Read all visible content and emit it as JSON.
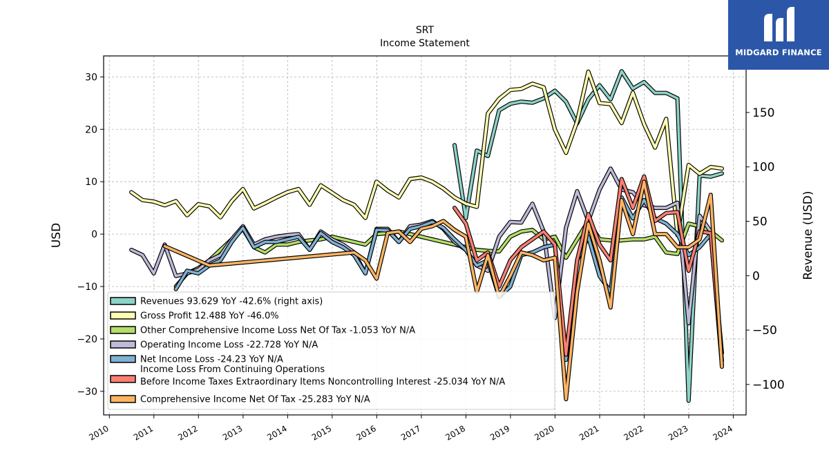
{
  "brand": {
    "name": "MIDGARD FINANCE",
    "bg_color": "#2c57a8"
  },
  "chart_data": {
    "type": "line",
    "title": "SRT",
    "subtitle": "Income Statement",
    "ylabel": "USD",
    "y2label": "Revenue (USD)",
    "ylim": [
      -34.5,
      34
    ],
    "y2lim": [
      -128,
      202
    ],
    "xlim": [
      "2009-11-15",
      "2024-04-15"
    ],
    "yticks": [
      30,
      20,
      10,
      0,
      -10,
      -20,
      -30
    ],
    "y2ticks": [
      150,
      100,
      50,
      0,
      -50,
      -100
    ],
    "xticks": [
      "2010",
      "2011",
      "2012",
      "2013",
      "2014",
      "2015",
      "2016",
      "2017",
      "2018",
      "2019",
      "2020",
      "2021",
      "2022",
      "2023",
      "2024"
    ],
    "grid": true,
    "legend_position": "lower-left",
    "series": [
      {
        "name": "Revenues",
        "legend": "Revenues  93.629 YoY -42.6% (right axis)",
        "axis": "right",
        "color": "#8dd3c7",
        "x": [
          "2017-09-30",
          "2017-12-31",
          "2018-03-31",
          "2018-06-30",
          "2018-09-30",
          "2018-12-31",
          "2019-03-31",
          "2019-06-30",
          "2019-09-30",
          "2019-12-31",
          "2020-03-31",
          "2020-06-30",
          "2020-09-30",
          "2020-12-31",
          "2021-03-31",
          "2021-06-30",
          "2021-09-30",
          "2021-12-31",
          "2022-03-31",
          "2022-06-30",
          "2022-09-30",
          "2022-12-31",
          "2023-03-31",
          "2023-06-30",
          "2023-09-30"
        ],
        "y": [
          120,
          53,
          115,
          110,
          152,
          158,
          160,
          159,
          163,
          170,
          160,
          140,
          162,
          175,
          162,
          188,
          172,
          178,
          168,
          168,
          163,
          -115,
          92,
          91,
          94
        ]
      },
      {
        "name": "Gross Profit",
        "legend": "Gross Profit  12.488 YoY -46.0%",
        "axis": "left",
        "color": "#ffffb3",
        "x": [
          "2010-06-30",
          "2010-09-30",
          "2010-12-31",
          "2011-03-31",
          "2011-06-30",
          "2011-09-30",
          "2011-12-31",
          "2012-03-31",
          "2012-06-30",
          "2012-09-30",
          "2012-12-31",
          "2013-03-31",
          "2013-06-30",
          "2013-09-30",
          "2013-12-31",
          "2014-03-31",
          "2014-06-30",
          "2014-09-30",
          "2014-12-31",
          "2015-03-31",
          "2015-06-30",
          "2015-09-30",
          "2015-12-31",
          "2016-03-31",
          "2016-06-30",
          "2016-09-30",
          "2016-12-31",
          "2017-03-31",
          "2017-06-30",
          "2017-09-30",
          "2017-12-31",
          "2018-03-31",
          "2018-06-30",
          "2018-09-30",
          "2018-12-31",
          "2019-03-31",
          "2019-06-30",
          "2019-09-30",
          "2019-12-31",
          "2020-03-31",
          "2020-06-30",
          "2020-09-30",
          "2020-12-31",
          "2021-03-31",
          "2021-06-30",
          "2021-09-30",
          "2021-12-31",
          "2022-03-31",
          "2022-06-30",
          "2022-09-30",
          "2022-12-31",
          "2023-03-31",
          "2023-06-30",
          "2023-09-30"
        ],
        "y": [
          8,
          6.5,
          6.2,
          5.5,
          6.3,
          3.6,
          5.7,
          5.3,
          3.2,
          6.3,
          8.6,
          4.9,
          5.9,
          7,
          8,
          8.6,
          5.6,
          9.3,
          7.9,
          6.5,
          5.6,
          3.1,
          10,
          8.3,
          7,
          10.5,
          10.8,
          10,
          8.7,
          7,
          5.8,
          5.2,
          23,
          25.8,
          27.5,
          27.7,
          28.7,
          28,
          20,
          15.5,
          21.5,
          31,
          25,
          24.8,
          21.2,
          27,
          21,
          16.5,
          22,
          -0.2,
          13.2,
          11.5,
          12.8,
          12.5
        ]
      },
      {
        "name": "Other Comprehensive Income Loss Net Of Tax",
        "legend": "Other Comprehensive Income Loss Net Of Tax  -1.053 YoY N/A",
        "axis": "left",
        "color": "#b3de69",
        "x": [
          "2011-06-30",
          "2011-09-30",
          "2011-12-31",
          "2012-03-31",
          "2012-06-30",
          "2012-09-30",
          "2012-12-31",
          "2013-03-31",
          "2013-06-30",
          "2013-09-30",
          "2013-12-31",
          "2014-03-31",
          "2014-06-30",
          "2014-09-30",
          "2014-12-31",
          "2015-03-31",
          "2015-06-30",
          "2015-09-30",
          "2015-12-31",
          "2016-03-31",
          "2016-06-30",
          "2016-09-30",
          "2016-12-31",
          "2017-03-31",
          "2017-06-30",
          "2017-09-30",
          "2017-12-31",
          "2018-03-31",
          "2018-06-30",
          "2018-09-30",
          "2018-12-31",
          "2019-03-31",
          "2019-06-30",
          "2019-09-30",
          "2019-12-31",
          "2020-03-31",
          "2020-06-30",
          "2020-09-30",
          "2020-12-31",
          "2021-03-31",
          "2021-06-30",
          "2021-09-30",
          "2021-12-31",
          "2022-03-31",
          "2022-06-30",
          "2022-09-30",
          "2022-12-31",
          "2023-03-31",
          "2023-06-30",
          "2023-09-30"
        ],
        "y": [
          -10,
          -7.5,
          -6.5,
          -5,
          -3,
          -1,
          1,
          -2.5,
          -3.5,
          -2,
          -2,
          -1.5,
          -1.2,
          -1,
          -0.5,
          -1,
          -1.5,
          -2,
          0,
          0.2,
          0.5,
          0,
          -0.5,
          -1,
          -1.5,
          -2,
          -2.5,
          -3,
          -3.2,
          -3.3,
          -0.5,
          0.5,
          0.8,
          -1,
          -0.5,
          -4.5,
          -1,
          2.5,
          -1,
          -1.2,
          -1.2,
          -1,
          -1,
          -0.5,
          -3.5,
          -3.8,
          2,
          1.5,
          0.5,
          -1.2
        ]
      },
      {
        "name": "Operating Income Loss",
        "legend": "Operating Income Loss  -22.728 YoY N/A",
        "axis": "left",
        "color": "#bebada",
        "x": [
          "2010-06-30",
          "2010-09-30",
          "2010-12-31",
          "2011-03-31",
          "2011-06-30",
          "2011-09-30",
          "2011-12-31",
          "2012-03-31",
          "2012-06-30",
          "2012-09-30",
          "2012-12-31",
          "2013-03-31",
          "2013-06-30",
          "2013-09-30",
          "2013-12-31",
          "2014-03-31",
          "2014-06-30",
          "2014-09-30",
          "2014-12-31",
          "2015-03-31",
          "2015-06-30",
          "2015-09-30",
          "2015-12-31",
          "2016-03-31",
          "2016-06-30",
          "2016-09-30",
          "2016-12-31",
          "2017-03-31",
          "2017-06-30",
          "2017-09-30",
          "2017-12-31",
          "2018-03-31",
          "2018-06-30",
          "2018-09-30",
          "2018-12-31",
          "2019-03-31",
          "2019-06-30",
          "2019-09-30",
          "2019-12-31",
          "2020-03-31",
          "2020-06-30",
          "2020-09-30",
          "2020-12-31",
          "2021-03-31",
          "2021-06-30",
          "2021-09-30",
          "2021-12-31",
          "2022-03-31",
          "2022-06-30",
          "2022-09-30",
          "2022-12-31",
          "2023-03-31",
          "2023-06-30",
          "2023-09-30"
        ],
        "y": [
          -3,
          -4,
          -7.5,
          -2,
          -8,
          -7.5,
          -6.8,
          -5,
          -4,
          -1,
          1.5,
          -2,
          -1,
          -0.5,
          -0.2,
          0,
          -3,
          0.5,
          -1,
          -2,
          -3.5,
          -7.5,
          1,
          1,
          -1.5,
          1.5,
          1.8,
          2.5,
          1,
          -1.5,
          -3,
          -6,
          -7,
          -0.5,
          2.3,
          2.2,
          5.8,
          0.5,
          -16,
          1.2,
          8.2,
          2.5,
          8.5,
          12.5,
          8.5,
          8,
          5.5,
          5,
          5,
          6,
          -17,
          3.5,
          0.5,
          -22.7
        ]
      },
      {
        "name": "Net Income Loss",
        "legend": "Net Income Loss  -24.23 YoY N/A",
        "axis": "left",
        "color": "#80b1d3",
        "x": [
          "2011-06-30",
          "2011-09-30",
          "2011-12-31",
          "2012-03-31",
          "2012-06-30",
          "2012-09-30",
          "2012-12-31",
          "2013-03-31",
          "2013-06-30",
          "2013-09-30",
          "2013-12-31",
          "2014-03-31",
          "2014-06-30",
          "2014-09-30",
          "2014-12-31",
          "2015-03-31",
          "2015-06-30",
          "2015-09-30",
          "2015-12-31",
          "2016-03-31",
          "2016-06-30",
          "2016-09-30",
          "2016-12-31",
          "2017-03-31",
          "2017-06-30",
          "2017-09-30",
          "2017-12-31",
          "2018-03-31",
          "2018-06-30",
          "2018-09-30",
          "2018-12-31",
          "2019-03-31",
          "2019-06-30",
          "2019-09-30",
          "2019-12-31",
          "2020-03-31",
          "2020-06-30",
          "2020-09-30",
          "2020-12-31",
          "2021-03-31",
          "2021-06-30",
          "2021-09-30",
          "2021-12-31",
          "2022-03-31",
          "2022-06-30",
          "2022-09-30",
          "2022-12-31",
          "2023-03-31",
          "2023-06-30",
          "2023-09-30"
        ],
        "y": [
          -10.5,
          -7,
          -7.5,
          -6,
          -5,
          -1.5,
          1.2,
          -2.5,
          -1.5,
          -1.5,
          -1,
          -0.5,
          -3,
          0.2,
          -1.5,
          -2.5,
          -4,
          -7.5,
          0.8,
          0.7,
          -1.5,
          1,
          1.5,
          2.3,
          1.2,
          -1,
          -3,
          -6,
          -5,
          -12,
          -10,
          -4,
          -3.5,
          -2.5,
          -2,
          -24,
          -5,
          -0.5,
          -8,
          -11,
          7,
          3,
          6.5,
          3,
          2,
          0,
          -4,
          -2.5,
          0,
          -24.2
        ]
      },
      {
        "name": "Income Loss From Continuing Operations Before Income Taxes Extraordinary Items Noncontrolling Interest",
        "legend": "Income Loss From Continuing Operations\nBefore Income Taxes Extraordinary Items Noncontrolling Interest  -25.034 YoY N/A",
        "axis": "left",
        "color": "#fb8072",
        "x": [
          "2017-09-30",
          "2017-12-31",
          "2018-03-31",
          "2018-06-30",
          "2018-09-30",
          "2018-12-31",
          "2019-03-31",
          "2019-06-30",
          "2019-09-30",
          "2019-12-31",
          "2020-03-31",
          "2020-06-30",
          "2020-09-30",
          "2020-12-31",
          "2021-03-31",
          "2021-06-30",
          "2021-09-30",
          "2021-12-31",
          "2022-03-31",
          "2022-06-30",
          "2022-09-30",
          "2022-12-31",
          "2023-03-31",
          "2023-06-30",
          "2023-09-30"
        ],
        "y": [
          5,
          2,
          -5,
          -3.5,
          -10,
          -5,
          -2.5,
          -1,
          0.5,
          -2,
          -23,
          -5,
          3.8,
          -2,
          -5,
          10.5,
          5,
          11,
          2.5,
          4,
          4.2,
          -7,
          0.5,
          0.2,
          -25
        ]
      },
      {
        "name": "Comprehensive Income Net Of Tax",
        "legend": "Comprehensive Income Net Of Tax  -25.283 YoY N/A",
        "axis": "left",
        "color": "#fdb462",
        "x": [
          "2011-03-31",
          "2012-03-31",
          "2015-06-30",
          "2015-09-30",
          "2015-12-31",
          "2016-03-31",
          "2016-06-30",
          "2016-09-30",
          "2016-12-31",
          "2017-03-31",
          "2017-06-30",
          "2017-09-30",
          "2017-12-31",
          "2018-03-31",
          "2018-06-30",
          "2018-09-30",
          "2018-12-31",
          "2019-03-31",
          "2019-06-30",
          "2019-09-30",
          "2019-12-31",
          "2020-03-31",
          "2020-06-30",
          "2020-09-30",
          "2020-12-31",
          "2021-03-31",
          "2021-06-30",
          "2021-09-30",
          "2021-12-31",
          "2022-03-31",
          "2022-06-30",
          "2022-09-30",
          "2022-12-31",
          "2023-03-31",
          "2023-06-30",
          "2023-09-30"
        ],
        "y": [
          -2.3,
          -6,
          -3.5,
          -5,
          -8.5,
          0.2,
          0.5,
          -1.5,
          1,
          1.5,
          2.5,
          0.8,
          -0.5,
          -11,
          -4,
          -12,
          -8,
          -3.5,
          -4,
          -5,
          -4.5,
          -31.5,
          -11,
          2,
          -5,
          -14,
          6.5,
          0,
          10,
          0,
          0,
          -2.5,
          -2.5,
          -1,
          7.5,
          -25.3
        ]
      }
    ]
  }
}
